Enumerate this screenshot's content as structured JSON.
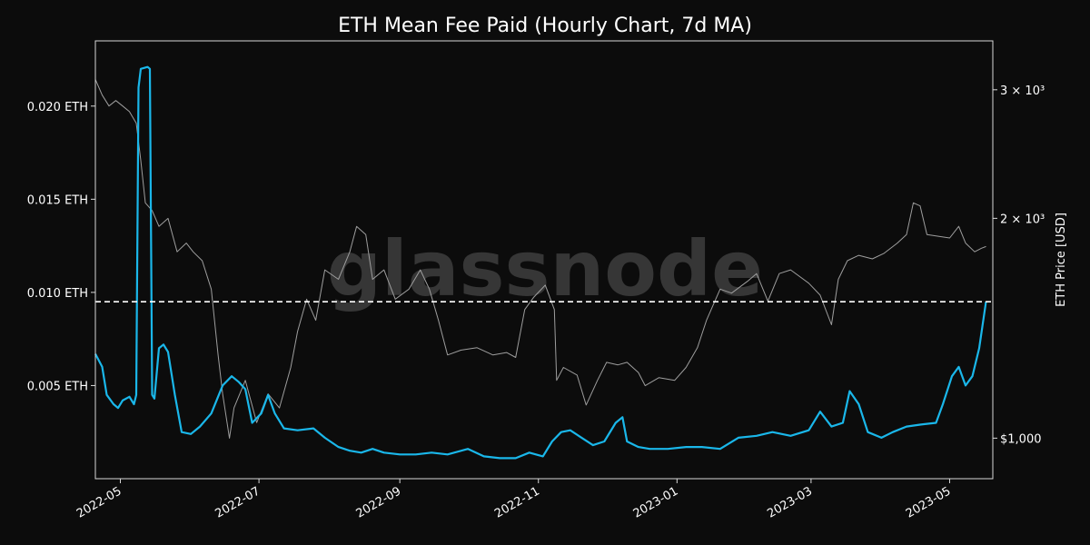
{
  "chart_data": {
    "type": "line",
    "title": "ETH Mean Fee Paid (Hourly Chart, 7d MA)",
    "watermark": "glassnode",
    "x_range": [
      "2022-04-20",
      "2023-05-20"
    ],
    "x_ticks": [
      "2022-05",
      "2022-07",
      "2022-09",
      "2022-11",
      "2023-01",
      "2023-03",
      "2023-05"
    ],
    "y_left": {
      "ylim": [
        0,
        0.0235
      ],
      "tick_labels": [
        "0.005 ETH",
        "0.010 ETH",
        "0.015 ETH",
        "0.020 ETH"
      ],
      "tick_values": [
        0.005,
        0.01,
        0.015,
        0.02
      ]
    },
    "y_right": {
      "label": "ETH Price [USD]",
      "scale": "log",
      "ylim": [
        880,
        3500
      ],
      "tick_labels": [
        "$1,000",
        "2 × 10³",
        "3 × 10³"
      ],
      "tick_values": [
        1000,
        2000,
        3000
      ]
    },
    "threshold": {
      "value": 0.0095,
      "style": "dashed",
      "color": "#ffffff"
    },
    "grid": false,
    "series": [
      {
        "axis": "left",
        "color": "#1ab7ea",
        "points": [
          [
            "2022-04-20",
            0.0067
          ],
          [
            "2022-04-23",
            0.006
          ],
          [
            "2022-04-25",
            0.0045
          ],
          [
            "2022-04-28",
            0.004
          ],
          [
            "2022-04-30",
            0.0038
          ],
          [
            "2022-05-02",
            0.0042
          ],
          [
            "2022-05-05",
            0.0044
          ],
          [
            "2022-05-07",
            0.004
          ],
          [
            "2022-05-08",
            0.0045
          ],
          [
            "2022-05-09",
            0.021
          ],
          [
            "2022-05-10",
            0.022
          ],
          [
            "2022-05-13",
            0.0221
          ],
          [
            "2022-05-14",
            0.022
          ],
          [
            "2022-05-15",
            0.0045
          ],
          [
            "2022-05-16",
            0.0043
          ],
          [
            "2022-05-18",
            0.007
          ],
          [
            "2022-05-20",
            0.0072
          ],
          [
            "2022-05-22",
            0.0068
          ],
          [
            "2022-05-25",
            0.0045
          ],
          [
            "2022-05-28",
            0.0025
          ],
          [
            "2022-06-01",
            0.0024
          ],
          [
            "2022-06-05",
            0.0028
          ],
          [
            "2022-06-10",
            0.0035
          ],
          [
            "2022-06-15",
            0.005
          ],
          [
            "2022-06-19",
            0.0055
          ],
          [
            "2022-06-22",
            0.0052
          ],
          [
            "2022-06-25",
            0.0048
          ],
          [
            "2022-06-28",
            0.003
          ],
          [
            "2022-07-02",
            0.0035
          ],
          [
            "2022-07-05",
            0.0045
          ],
          [
            "2022-07-08",
            0.0035
          ],
          [
            "2022-07-12",
            0.0027
          ],
          [
            "2022-07-18",
            0.0026
          ],
          [
            "2022-07-25",
            0.0027
          ],
          [
            "2022-07-30",
            0.0022
          ],
          [
            "2022-08-05",
            0.0017
          ],
          [
            "2022-08-10",
            0.0015
          ],
          [
            "2022-08-15",
            0.0014
          ],
          [
            "2022-08-20",
            0.0016
          ],
          [
            "2022-08-25",
            0.0014
          ],
          [
            "2022-09-01",
            0.0013
          ],
          [
            "2022-09-08",
            0.0013
          ],
          [
            "2022-09-15",
            0.0014
          ],
          [
            "2022-09-22",
            0.0013
          ],
          [
            "2022-10-01",
            0.0016
          ],
          [
            "2022-10-08",
            0.0012
          ],
          [
            "2022-10-15",
            0.0011
          ],
          [
            "2022-10-22",
            0.0011
          ],
          [
            "2022-10-28",
            0.0014
          ],
          [
            "2022-11-03",
            0.0012
          ],
          [
            "2022-11-07",
            0.002
          ],
          [
            "2022-11-11",
            0.0025
          ],
          [
            "2022-11-15",
            0.0026
          ],
          [
            "2022-11-20",
            0.0022
          ],
          [
            "2022-11-25",
            0.0018
          ],
          [
            "2022-11-30",
            0.002
          ],
          [
            "2022-12-05",
            0.003
          ],
          [
            "2022-12-08",
            0.0033
          ],
          [
            "2022-12-10",
            0.002
          ],
          [
            "2022-12-15",
            0.0017
          ],
          [
            "2022-12-20",
            0.0016
          ],
          [
            "2022-12-28",
            0.0016
          ],
          [
            "2023-01-05",
            0.0017
          ],
          [
            "2023-01-12",
            0.0017
          ],
          [
            "2023-01-20",
            0.0016
          ],
          [
            "2023-01-28",
            0.0022
          ],
          [
            "2023-02-05",
            0.0023
          ],
          [
            "2023-02-12",
            0.0025
          ],
          [
            "2023-02-20",
            0.0023
          ],
          [
            "2023-02-28",
            0.0026
          ],
          [
            "2023-03-05",
            0.0036
          ],
          [
            "2023-03-10",
            0.0028
          ],
          [
            "2023-03-15",
            0.003
          ],
          [
            "2023-03-18",
            0.0047
          ],
          [
            "2023-03-22",
            0.004
          ],
          [
            "2023-03-26",
            0.0025
          ],
          [
            "2023-04-01",
            0.0022
          ],
          [
            "2023-04-06",
            0.0025
          ],
          [
            "2023-04-12",
            0.0028
          ],
          [
            "2023-04-18",
            0.0029
          ],
          [
            "2023-04-25",
            0.003
          ],
          [
            "2023-04-28",
            0.004
          ],
          [
            "2023-05-02",
            0.0055
          ],
          [
            "2023-05-05",
            0.006
          ],
          [
            "2023-05-08",
            0.005
          ],
          [
            "2023-05-11",
            0.0055
          ],
          [
            "2023-05-14",
            0.007
          ],
          [
            "2023-05-17",
            0.0095
          ]
        ]
      },
      {
        "axis": "right",
        "color": "#9e9e9e",
        "points": [
          [
            "2022-04-20",
            3100
          ],
          [
            "2022-04-23",
            2950
          ],
          [
            "2022-04-26",
            2850
          ],
          [
            "2022-04-29",
            2900
          ],
          [
            "2022-05-02",
            2850
          ],
          [
            "2022-05-05",
            2800
          ],
          [
            "2022-05-08",
            2700
          ],
          [
            "2022-05-10",
            2400
          ],
          [
            "2022-05-12",
            2100
          ],
          [
            "2022-05-15",
            2050
          ],
          [
            "2022-05-18",
            1950
          ],
          [
            "2022-05-22",
            2000
          ],
          [
            "2022-05-26",
            1800
          ],
          [
            "2022-05-30",
            1850
          ],
          [
            "2022-06-02",
            1800
          ],
          [
            "2022-06-06",
            1750
          ],
          [
            "2022-06-10",
            1600
          ],
          [
            "2022-06-13",
            1300
          ],
          [
            "2022-06-15",
            1150
          ],
          [
            "2022-06-18",
            1000
          ],
          [
            "2022-06-20",
            1100
          ],
          [
            "2022-06-25",
            1200
          ],
          [
            "2022-06-30",
            1050
          ],
          [
            "2022-07-05",
            1150
          ],
          [
            "2022-07-10",
            1100
          ],
          [
            "2022-07-15",
            1250
          ],
          [
            "2022-07-18",
            1400
          ],
          [
            "2022-07-22",
            1550
          ],
          [
            "2022-07-26",
            1450
          ],
          [
            "2022-07-30",
            1700
          ],
          [
            "2022-08-05",
            1650
          ],
          [
            "2022-08-10",
            1800
          ],
          [
            "2022-08-13",
            1950
          ],
          [
            "2022-08-17",
            1900
          ],
          [
            "2022-08-20",
            1650
          ],
          [
            "2022-08-25",
            1700
          ],
          [
            "2022-08-30",
            1550
          ],
          [
            "2022-09-05",
            1600
          ],
          [
            "2022-09-10",
            1700
          ],
          [
            "2022-09-14",
            1600
          ],
          [
            "2022-09-18",
            1450
          ],
          [
            "2022-09-22",
            1300
          ],
          [
            "2022-09-28",
            1320
          ],
          [
            "2022-10-05",
            1330
          ],
          [
            "2022-10-12",
            1300
          ],
          [
            "2022-10-18",
            1310
          ],
          [
            "2022-10-22",
            1290
          ],
          [
            "2022-10-26",
            1500
          ],
          [
            "2022-10-30",
            1560
          ],
          [
            "2022-11-04",
            1620
          ],
          [
            "2022-11-08",
            1500
          ],
          [
            "2022-11-09",
            1200
          ],
          [
            "2022-11-12",
            1250
          ],
          [
            "2022-11-18",
            1220
          ],
          [
            "2022-11-22",
            1110
          ],
          [
            "2022-11-27",
            1200
          ],
          [
            "2022-12-01",
            1270
          ],
          [
            "2022-12-06",
            1260
          ],
          [
            "2022-12-10",
            1270
          ],
          [
            "2022-12-15",
            1230
          ],
          [
            "2022-12-18",
            1180
          ],
          [
            "2022-12-24",
            1210
          ],
          [
            "2022-12-31",
            1200
          ],
          [
            "2023-01-05",
            1250
          ],
          [
            "2023-01-10",
            1330
          ],
          [
            "2023-01-14",
            1450
          ],
          [
            "2023-01-20",
            1600
          ],
          [
            "2023-01-25",
            1580
          ],
          [
            "2023-02-01",
            1640
          ],
          [
            "2023-02-05",
            1680
          ],
          [
            "2023-02-10",
            1540
          ],
          [
            "2023-02-15",
            1680
          ],
          [
            "2023-02-20",
            1700
          ],
          [
            "2023-02-28",
            1630
          ],
          [
            "2023-03-05",
            1570
          ],
          [
            "2023-03-10",
            1430
          ],
          [
            "2023-03-13",
            1650
          ],
          [
            "2023-03-17",
            1750
          ],
          [
            "2023-03-22",
            1780
          ],
          [
            "2023-03-28",
            1760
          ],
          [
            "2023-04-02",
            1790
          ],
          [
            "2023-04-08",
            1850
          ],
          [
            "2023-04-12",
            1900
          ],
          [
            "2023-04-15",
            2100
          ],
          [
            "2023-04-18",
            2080
          ],
          [
            "2023-04-21",
            1900
          ],
          [
            "2023-04-26",
            1890
          ],
          [
            "2023-05-01",
            1880
          ],
          [
            "2023-05-05",
            1950
          ],
          [
            "2023-05-08",
            1850
          ],
          [
            "2023-05-12",
            1800
          ],
          [
            "2023-05-15",
            1820
          ],
          [
            "2023-05-17",
            1830
          ]
        ]
      }
    ]
  }
}
